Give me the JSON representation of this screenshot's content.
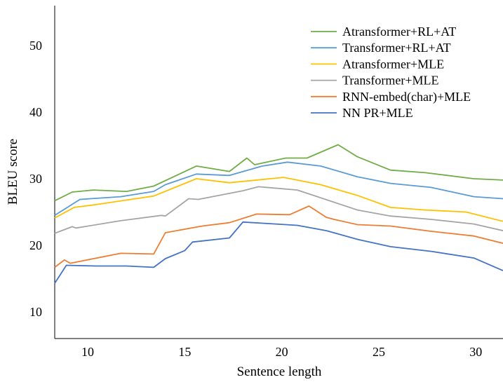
{
  "chart_data": {
    "type": "line",
    "title": "",
    "xlabel": "Sentence length",
    "ylabel": "BLEU score",
    "xlim": [
      8.3,
      31.4
    ],
    "ylim": [
      6,
      56
    ],
    "x_ticks": [
      10,
      15,
      20,
      25,
      30
    ],
    "y_ticks": [
      10,
      20,
      30,
      40,
      50
    ],
    "grid": false,
    "legend_position": "top-right",
    "series": [
      {
        "name": "Atransformer+RL+AT",
        "color": "#70ad47",
        "points": [
          [
            8.3,
            26.7
          ],
          [
            9.2,
            28.0
          ],
          [
            10.3,
            28.3
          ],
          [
            12.0,
            28.1
          ],
          [
            13.4,
            28.9
          ],
          [
            15.6,
            31.9
          ],
          [
            17.3,
            31.1
          ],
          [
            18.2,
            33.1
          ],
          [
            18.6,
            32.1
          ],
          [
            20.2,
            33.1
          ],
          [
            21.3,
            33.1
          ],
          [
            22.9,
            35.1
          ],
          [
            23.9,
            33.3
          ],
          [
            25.6,
            31.3
          ],
          [
            27.4,
            30.9
          ],
          [
            29.9,
            30.0
          ],
          [
            31.4,
            29.8
          ]
        ]
      },
      {
        "name": "Transformer+RL+AT",
        "color": "#5b9bd5",
        "points": [
          [
            8.3,
            24.5
          ],
          [
            9.6,
            26.9
          ],
          [
            11.7,
            27.3
          ],
          [
            13.4,
            28.1
          ],
          [
            14.0,
            29.1
          ],
          [
            15.6,
            30.7
          ],
          [
            17.3,
            30.5
          ],
          [
            19.0,
            31.9
          ],
          [
            20.3,
            32.5
          ],
          [
            22.0,
            31.9
          ],
          [
            23.9,
            30.3
          ],
          [
            25.6,
            29.3
          ],
          [
            27.7,
            28.7
          ],
          [
            29.9,
            27.3
          ],
          [
            31.4,
            27.0
          ]
        ]
      },
      {
        "name": "Atransformer+MLE",
        "color": "#ffc000",
        "points": [
          [
            8.3,
            24.1
          ],
          [
            9.3,
            25.7
          ],
          [
            10.4,
            26.1
          ],
          [
            12.0,
            26.8
          ],
          [
            13.4,
            27.4
          ],
          [
            15.6,
            30.0
          ],
          [
            17.3,
            29.4
          ],
          [
            20.1,
            30.2
          ],
          [
            22.0,
            29.1
          ],
          [
            23.9,
            27.5
          ],
          [
            25.6,
            25.7
          ],
          [
            27.4,
            25.3
          ],
          [
            29.5,
            25.0
          ],
          [
            31.4,
            23.6
          ]
        ]
      },
      {
        "name": "Transformer+MLE",
        "color": "#a5a5a5",
        "points": [
          [
            8.3,
            21.8
          ],
          [
            9.2,
            22.8
          ],
          [
            9.4,
            22.6
          ],
          [
            11.7,
            23.7
          ],
          [
            13.8,
            24.5
          ],
          [
            14.0,
            24.4
          ],
          [
            15.2,
            27.0
          ],
          [
            15.7,
            26.9
          ],
          [
            18.0,
            28.2
          ],
          [
            18.8,
            28.8
          ],
          [
            20.8,
            28.3
          ],
          [
            23.9,
            25.3
          ],
          [
            25.6,
            24.4
          ],
          [
            27.7,
            23.9
          ],
          [
            29.9,
            23.2
          ],
          [
            31.4,
            22.2
          ]
        ]
      },
      {
        "name": "RNN-embed(char)+MLE",
        "color": "#ed7d31",
        "points": [
          [
            8.3,
            16.7
          ],
          [
            8.8,
            17.8
          ],
          [
            9.1,
            17.3
          ],
          [
            11.7,
            18.8
          ],
          [
            13.4,
            18.7
          ],
          [
            14.0,
            21.9
          ],
          [
            15.9,
            22.9
          ],
          [
            17.3,
            23.4
          ],
          [
            18.7,
            24.7
          ],
          [
            20.4,
            24.6
          ],
          [
            21.4,
            25.9
          ],
          [
            22.3,
            24.2
          ],
          [
            22.7,
            23.9
          ],
          [
            23.9,
            23.1
          ],
          [
            25.6,
            22.9
          ],
          [
            27.7,
            22.1
          ],
          [
            29.9,
            21.4
          ],
          [
            31.4,
            20.3
          ]
        ]
      },
      {
        "name": "NN PR+MLE",
        "color": "#4472c4",
        "points": [
          [
            8.3,
            14.3
          ],
          [
            8.9,
            17.0
          ],
          [
            10.4,
            16.9
          ],
          [
            12.0,
            16.9
          ],
          [
            13.4,
            16.7
          ],
          [
            14.0,
            18.0
          ],
          [
            15.0,
            19.2
          ],
          [
            15.4,
            20.5
          ],
          [
            17.3,
            21.1
          ],
          [
            18.0,
            23.5
          ],
          [
            19.1,
            23.3
          ],
          [
            20.8,
            23.0
          ],
          [
            22.3,
            22.2
          ],
          [
            23.9,
            20.9
          ],
          [
            25.6,
            19.8
          ],
          [
            27.7,
            19.1
          ],
          [
            29.9,
            18.1
          ],
          [
            31.4,
            16.2
          ]
        ]
      }
    ]
  }
}
